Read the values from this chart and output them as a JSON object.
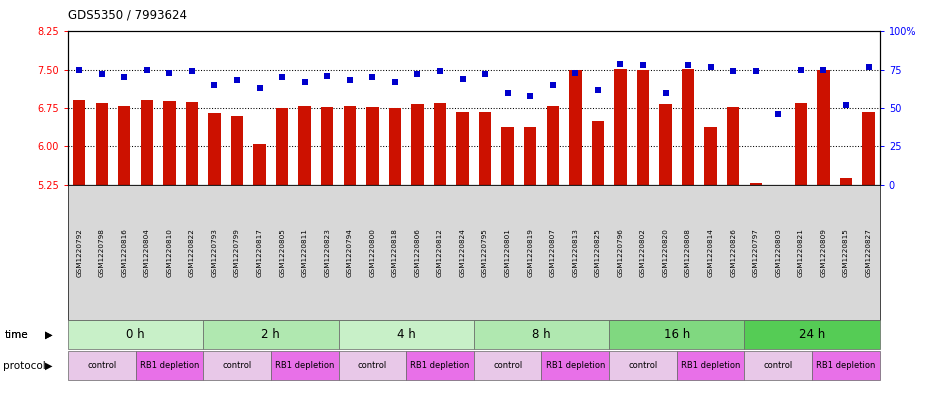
{
  "title": "GDS5350 / 7993624",
  "samples": [
    "GSM1220792",
    "GSM1220798",
    "GSM1220816",
    "GSM1220804",
    "GSM1220810",
    "GSM1220822",
    "GSM1220793",
    "GSM1220799",
    "GSM1220817",
    "GSM1220805",
    "GSM1220811",
    "GSM1220823",
    "GSM1220794",
    "GSM1220800",
    "GSM1220818",
    "GSM1220806",
    "GSM1220812",
    "GSM1220824",
    "GSM1220795",
    "GSM1220801",
    "GSM1220819",
    "GSM1220807",
    "GSM1220813",
    "GSM1220825",
    "GSM1220796",
    "GSM1220802",
    "GSM1220820",
    "GSM1220808",
    "GSM1220814",
    "GSM1220826",
    "GSM1220797",
    "GSM1220803",
    "GSM1220821",
    "GSM1220809",
    "GSM1220815",
    "GSM1220827"
  ],
  "bar_values": [
    6.9,
    6.85,
    6.8,
    6.9,
    6.88,
    6.87,
    6.65,
    6.6,
    6.05,
    6.75,
    6.8,
    6.78,
    6.8,
    6.78,
    6.75,
    6.82,
    6.84,
    6.68,
    6.68,
    6.38,
    6.37,
    6.8,
    7.5,
    6.5,
    7.52,
    7.5,
    6.82,
    7.52,
    6.38,
    6.78,
    5.28,
    5.02,
    6.85,
    7.5,
    5.38,
    6.68
  ],
  "percentile_values": [
    75,
    72,
    70,
    75,
    73,
    74,
    65,
    68,
    63,
    70,
    67,
    71,
    68,
    70,
    67,
    72,
    74,
    69,
    72,
    60,
    58,
    65,
    73,
    62,
    79,
    78,
    60,
    78,
    77,
    74,
    74,
    46,
    75,
    75,
    52,
    77
  ],
  "time_groups": [
    {
      "label": "0 h",
      "start": 0,
      "end": 6,
      "color": "#c8f0c8"
    },
    {
      "label": "2 h",
      "start": 6,
      "end": 12,
      "color": "#b0e8b0"
    },
    {
      "label": "4 h",
      "start": 12,
      "end": 18,
      "color": "#c8f0c8"
    },
    {
      "label": "8 h",
      "start": 18,
      "end": 24,
      "color": "#b0e8b0"
    },
    {
      "label": "16 h",
      "start": 24,
      "end": 30,
      "color": "#80d880"
    },
    {
      "label": "24 h",
      "start": 30,
      "end": 36,
      "color": "#55cc55"
    }
  ],
  "protocol_groups": [
    {
      "label": "control",
      "start": 0,
      "end": 3,
      "color": "#e8c8e8"
    },
    {
      "label": "RB1 depletion",
      "start": 3,
      "end": 6,
      "color": "#e870e8"
    },
    {
      "label": "control",
      "start": 6,
      "end": 9,
      "color": "#e8c8e8"
    },
    {
      "label": "RB1 depletion",
      "start": 9,
      "end": 12,
      "color": "#e870e8"
    },
    {
      "label": "control",
      "start": 12,
      "end": 15,
      "color": "#e8c8e8"
    },
    {
      "label": "RB1 depletion",
      "start": 15,
      "end": 18,
      "color": "#e870e8"
    },
    {
      "label": "control",
      "start": 18,
      "end": 21,
      "color": "#e8c8e8"
    },
    {
      "label": "RB1 depletion",
      "start": 21,
      "end": 24,
      "color": "#e870e8"
    },
    {
      "label": "control",
      "start": 24,
      "end": 27,
      "color": "#e8c8e8"
    },
    {
      "label": "RB1 depletion",
      "start": 27,
      "end": 30,
      "color": "#e870e8"
    },
    {
      "label": "control",
      "start": 30,
      "end": 33,
      "color": "#e8c8e8"
    },
    {
      "label": "RB1 depletion",
      "start": 33,
      "end": 36,
      "color": "#e870e8"
    }
  ],
  "ylim_left": [
    5.25,
    8.25
  ],
  "ylim_right": [
    0,
    100
  ],
  "yticks_left": [
    5.25,
    6.0,
    6.75,
    7.5,
    8.25
  ],
  "yticks_right": [
    0,
    25,
    50,
    75,
    100
  ],
  "bar_color": "#cc1100",
  "dot_color": "#0000cc",
  "background_color": "#ffffff",
  "xtick_bg": "#d8d8d8"
}
